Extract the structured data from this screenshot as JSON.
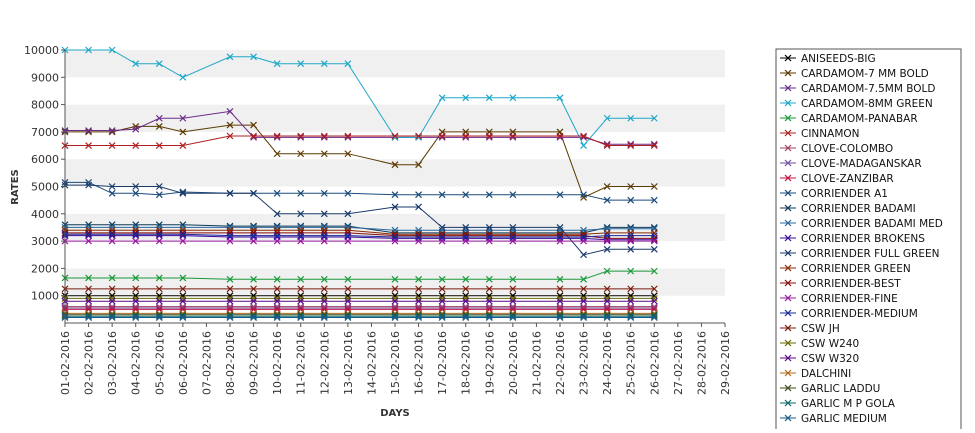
{
  "chart_data": {
    "type": "line",
    "title": "",
    "xlabel": "DAYS",
    "ylabel": "RATES",
    "ylim": [
      0,
      10000
    ],
    "yticks": [
      1000,
      2000,
      3000,
      4000,
      5000,
      6000,
      7000,
      8000,
      9000,
      10000
    ],
    "grid": "alternating horizontal bands",
    "legend_position": "right",
    "categories": [
      "01-02-2016",
      "02-02-2016",
      "03-02-2016",
      "04-02-2016",
      "05-02-2016",
      "06-02-2016",
      "07-02-2016",
      "08-02-2016",
      "09-02-2016",
      "10-02-2016",
      "11-02-2016",
      "12-02-2016",
      "13-02-2016",
      "14-02-2016",
      "15-02-2016",
      "16-02-2016",
      "17-02-2016",
      "18-02-2016",
      "19-02-2016",
      "20-02-2016",
      "21-02-2016",
      "22-02-2016",
      "23-02-2016",
      "24-02-2016",
      "25-02-2016",
      "26-02-2016",
      "27-02-2016",
      "28-02-2016",
      "29-02-2016"
    ],
    "series": [
      {
        "name": "ANISEEDS-BIG",
        "color": "#000000",
        "values": [
          1000,
          1000,
          1000,
          1000,
          1000,
          1000,
          null,
          1000,
          1000,
          1000,
          1000,
          1000,
          1000,
          null,
          1000,
          1000,
          1000,
          1000,
          1000,
          1000,
          null,
          1000,
          1000,
          1000,
          1000,
          1000,
          null,
          null,
          null
        ]
      },
      {
        "name": "CARDAMOM-7 MM BOLD",
        "color": "#5c3a00",
        "values": [
          7000,
          7000,
          7000,
          7200,
          7200,
          7000,
          null,
          7250,
          7250,
          6200,
          6200,
          6200,
          6200,
          null,
          5800,
          5800,
          7000,
          7000,
          7000,
          7000,
          null,
          7000,
          4600,
          5000,
          5000,
          5000,
          null,
          null,
          null
        ]
      },
      {
        "name": "CARDAMOM-7.5MM BOLD",
        "color": "#6a2a8a",
        "values": [
          7050,
          7050,
          7050,
          7100,
          7500,
          7500,
          null,
          7750,
          6800,
          6800,
          6800,
          6800,
          6800,
          null,
          6800,
          6800,
          6800,
          6800,
          6800,
          6800,
          null,
          6800,
          6800,
          6550,
          6550,
          6550,
          null,
          null,
          null
        ]
      },
      {
        "name": "CARDAMOM-8MM GREEN",
        "color": "#1fa8c8",
        "values": [
          10000,
          10000,
          10000,
          9500,
          9500,
          9000,
          null,
          9750,
          9750,
          9500,
          9500,
          9500,
          9500,
          null,
          6800,
          6800,
          8250,
          8250,
          8250,
          8250,
          null,
          8250,
          6500,
          7500,
          7500,
          7500,
          null,
          null,
          null
        ]
      },
      {
        "name": "CARDAMOM-PANABAR",
        "color": "#1a9a3a",
        "values": [
          1650,
          1650,
          1650,
          1650,
          1650,
          1650,
          null,
          1600,
          1600,
          1600,
          1600,
          1600,
          1600,
          null,
          1600,
          1600,
          1600,
          1600,
          1600,
          1600,
          null,
          1600,
          1600,
          1900,
          1900,
          1900,
          null,
          null,
          null
        ]
      },
      {
        "name": "CINNAMON",
        "color": "#b02020",
        "values": [
          6500,
          6500,
          6500,
          6500,
          6500,
          6500,
          null,
          6850,
          6850,
          6850,
          6850,
          6850,
          6850,
          null,
          6850,
          6850,
          6850,
          6850,
          6850,
          6850,
          null,
          6850,
          6850,
          6500,
          6500,
          6500,
          null,
          null,
          null
        ]
      },
      {
        "name": "CLOVE-COLOMBO",
        "color": "#a04060",
        "values": [
          600,
          600,
          600,
          600,
          600,
          600,
          null,
          600,
          600,
          600,
          600,
          600,
          600,
          null,
          600,
          600,
          600,
          600,
          600,
          600,
          null,
          600,
          600,
          600,
          600,
          600,
          null,
          null,
          null
        ]
      },
      {
        "name": "CLOVE-MADAGANSKAR",
        "color": "#7050a0",
        "values": [
          550,
          550,
          550,
          550,
          550,
          550,
          null,
          550,
          550,
          550,
          550,
          550,
          550,
          null,
          550,
          550,
          550,
          550,
          550,
          550,
          null,
          550,
          550,
          550,
          550,
          550,
          null,
          null,
          null
        ]
      },
      {
        "name": "CLOVE-ZANZIBAR",
        "color": "#c01040",
        "values": [
          500,
          500,
          500,
          500,
          500,
          500,
          null,
          500,
          500,
          500,
          500,
          500,
          500,
          null,
          500,
          500,
          500,
          500,
          500,
          500,
          null,
          500,
          500,
          500,
          500,
          500,
          null,
          null,
          null
        ]
      },
      {
        "name": "CORRIENDER A1",
        "color": "#1a4a7a",
        "values": [
          5150,
          5150,
          4750,
          4750,
          4700,
          4800,
          null,
          4750,
          4750,
          4750,
          4750,
          4750,
          4750,
          null,
          4700,
          4700,
          4700,
          4700,
          4700,
          4700,
          null,
          4700,
          4700,
          4500,
          4500,
          4500,
          null,
          null,
          null
        ]
      },
      {
        "name": "CORRIENDER BADAMI",
        "color": "#0a3a5a",
        "values": [
          3600,
          3600,
          3600,
          3600,
          3600,
          3600,
          null,
          3550,
          3550,
          3550,
          3550,
          3550,
          3550,
          null,
          3300,
          3300,
          3300,
          3300,
          3300,
          3300,
          null,
          3300,
          3300,
          3500,
          3500,
          3500,
          null,
          null,
          null
        ]
      },
      {
        "name": "CORRIENDER BADAMI MED",
        "color": "#2a6aa0",
        "values": [
          3500,
          3500,
          3500,
          3500,
          3500,
          3500,
          null,
          3500,
          3500,
          3500,
          3500,
          3500,
          3500,
          null,
          3400,
          3400,
          3400,
          3400,
          3400,
          3400,
          null,
          3400,
          3400,
          3450,
          3450,
          3450,
          null,
          null,
          null
        ]
      },
      {
        "name": "CORRIENDER BROKENS",
        "color": "#3a0aa0",
        "values": [
          3200,
          3200,
          3200,
          3200,
          3200,
          3200,
          null,
          3150,
          3150,
          3150,
          3150,
          3150,
          3150,
          null,
          3100,
          3100,
          3100,
          3100,
          3100,
          3100,
          null,
          3100,
          3100,
          3050,
          3050,
          3050,
          null,
          null,
          null
        ]
      },
      {
        "name": "CORRIENDER FULL GREEN",
        "color": "#1a3a6a",
        "values": [
          5050,
          5050,
          5000,
          5000,
          5000,
          4750,
          null,
          4750,
          4750,
          4000,
          4000,
          4000,
          4000,
          null,
          4250,
          4250,
          3500,
          3500,
          3500,
          3500,
          null,
          3500,
          2500,
          2700,
          2700,
          2700,
          null,
          null,
          null
        ]
      },
      {
        "name": "CORRIENDER GREEN",
        "color": "#8a2a00",
        "values": [
          3400,
          3400,
          3400,
          3400,
          3400,
          3400,
          null,
          3400,
          3400,
          3400,
          3400,
          3400,
          3400,
          null,
          3250,
          3250,
          3250,
          3250,
          3250,
          3250,
          null,
          3250,
          3250,
          3300,
          3300,
          3300,
          null,
          null,
          null
        ]
      },
      {
        "name": "CORRIENDER-BEST",
        "color": "#8a0a0a",
        "values": [
          3300,
          3300,
          3300,
          3300,
          3300,
          3300,
          null,
          3300,
          3300,
          3300,
          3300,
          3300,
          3300,
          null,
          3200,
          3200,
          3200,
          3200,
          3200,
          3200,
          null,
          3200,
          3200,
          3100,
          3100,
          3100,
          null,
          null,
          null
        ]
      },
      {
        "name": "CORRIENDER-FINE",
        "color": "#9a1aa0",
        "values": [
          3000,
          3000,
          3000,
          3000,
          3000,
          3000,
          null,
          3000,
          3000,
          3000,
          3000,
          3000,
          3000,
          null,
          3000,
          3000,
          3000,
          3000,
          3000,
          3000,
          null,
          3000,
          3000,
          3000,
          3000,
          3000,
          null,
          null,
          null
        ]
      },
      {
        "name": "CORRIENDER-MEDIUM",
        "color": "#1a2a9a",
        "values": [
          3250,
          3250,
          3250,
          3250,
          3250,
          3250,
          null,
          3200,
          3200,
          3200,
          3200,
          3200,
          3200,
          null,
          3150,
          3150,
          3150,
          3150,
          3150,
          3150,
          null,
          3150,
          3150,
          3200,
          3200,
          3200,
          null,
          null,
          null
        ]
      },
      {
        "name": "CSW JH",
        "color": "#7a1a0a",
        "values": [
          1250,
          1250,
          1250,
          1250,
          1250,
          1250,
          null,
          1250,
          1250,
          1250,
          1250,
          1250,
          1250,
          null,
          1250,
          1250,
          1250,
          1250,
          1250,
          1250,
          null,
          1250,
          1250,
          1250,
          1250,
          1250,
          null,
          null,
          null
        ]
      },
      {
        "name": "CSW W240",
        "color": "#6a6a00",
        "values": [
          900,
          900,
          900,
          900,
          900,
          900,
          null,
          900,
          900,
          900,
          900,
          900,
          900,
          null,
          900,
          900,
          900,
          900,
          900,
          900,
          null,
          900,
          900,
          900,
          900,
          900,
          null,
          null,
          null
        ]
      },
      {
        "name": "CSW W320",
        "color": "#5a0a8a",
        "values": [
          800,
          800,
          800,
          800,
          800,
          800,
          null,
          800,
          800,
          800,
          800,
          800,
          800,
          null,
          800,
          800,
          800,
          800,
          800,
          800,
          null,
          800,
          800,
          800,
          800,
          800,
          null,
          null,
          null
        ]
      },
      {
        "name": "DALCHINI",
        "color": "#b06a1a",
        "values": [
          350,
          350,
          350,
          350,
          350,
          350,
          null,
          350,
          350,
          350,
          350,
          350,
          350,
          null,
          350,
          350,
          350,
          350,
          350,
          350,
          null,
          350,
          350,
          350,
          350,
          350,
          null,
          null,
          null
        ]
      },
      {
        "name": "GARLIC LADDU",
        "color": "#3a4a1a",
        "values": [
          300,
          300,
          300,
          300,
          300,
          300,
          null,
          300,
          300,
          300,
          300,
          300,
          300,
          null,
          300,
          300,
          300,
          300,
          300,
          300,
          null,
          300,
          300,
          300,
          300,
          300,
          null,
          null,
          null
        ]
      },
      {
        "name": "GARLIC M P GOLA",
        "color": "#0a6a6a",
        "values": [
          250,
          250,
          250,
          250,
          250,
          250,
          null,
          250,
          250,
          250,
          250,
          250,
          250,
          null,
          250,
          250,
          250,
          250,
          250,
          250,
          null,
          250,
          250,
          250,
          250,
          250,
          null,
          null,
          null
        ]
      },
      {
        "name": "GARLIC MEDIUM",
        "color": "#1a5a8a",
        "values": [
          200,
          200,
          200,
          200,
          200,
          200,
          null,
          200,
          200,
          200,
          200,
          200,
          200,
          null,
          200,
          200,
          200,
          200,
          200,
          200,
          null,
          200,
          200,
          200,
          200,
          200,
          null,
          null,
          null
        ]
      }
    ]
  }
}
